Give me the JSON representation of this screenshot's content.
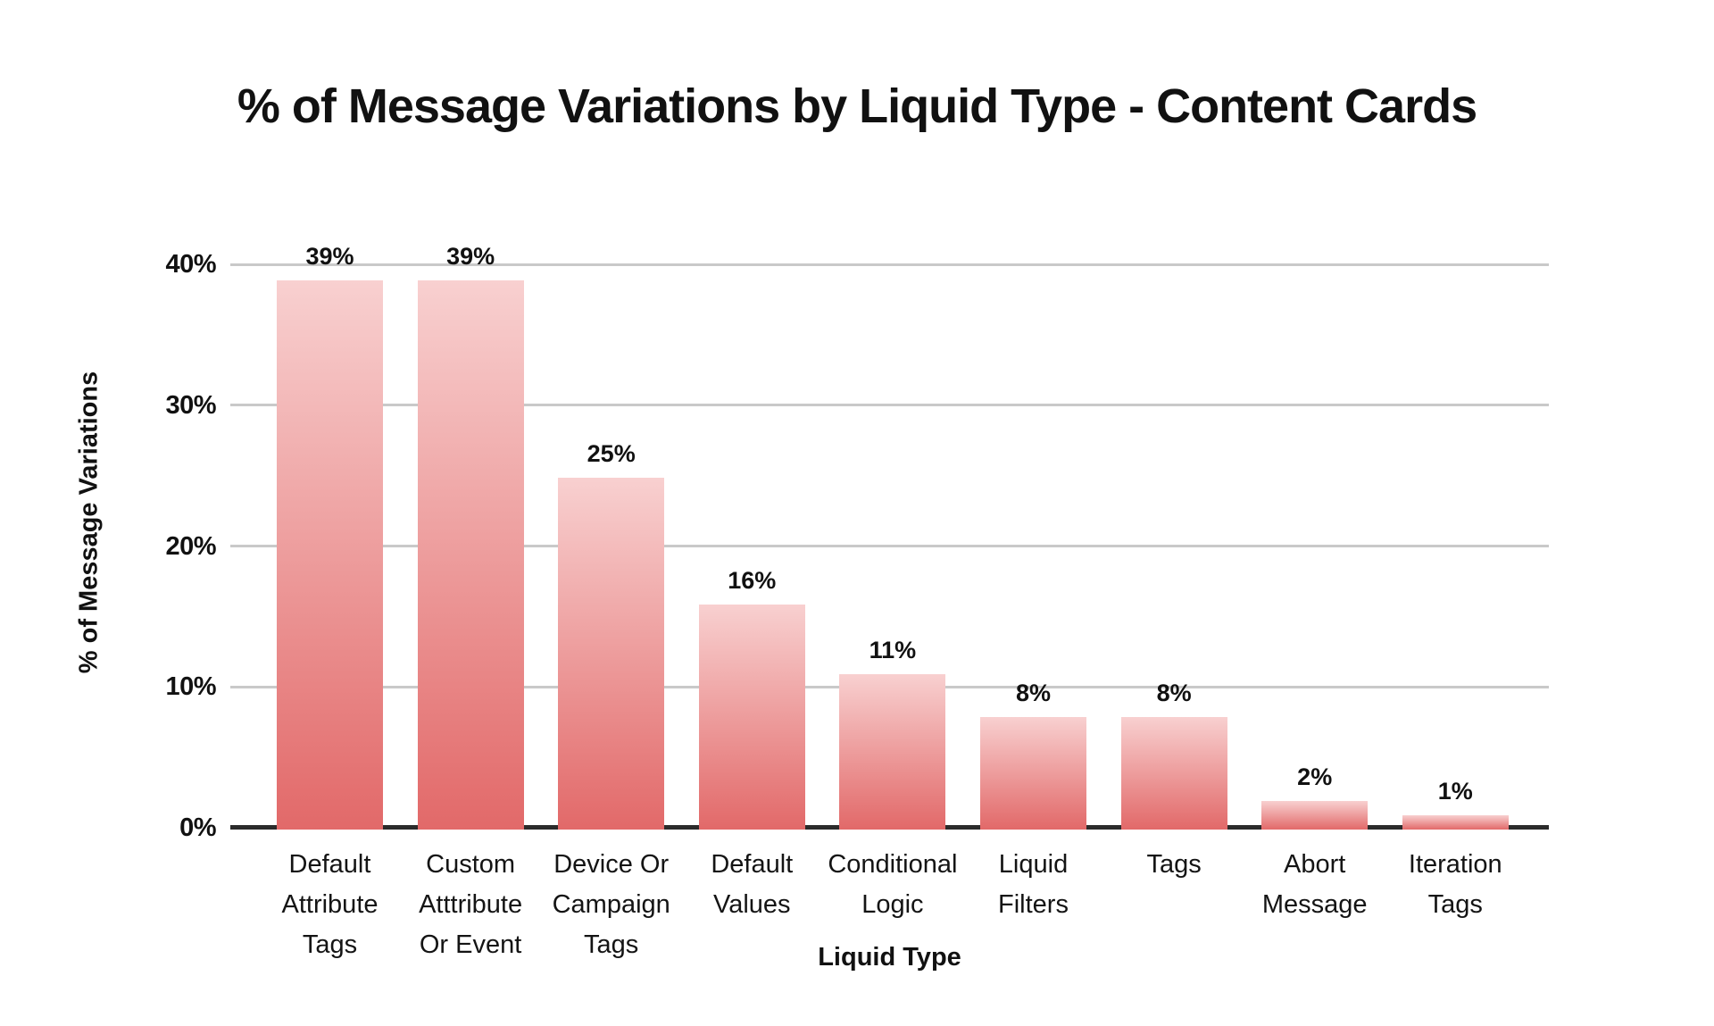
{
  "title": "% of Message Variations by Liquid Type - Content Cards",
  "chart_data": {
    "type": "bar",
    "title": "% of Message Variations by Liquid Type - Content Cards",
    "xlabel": "Liquid Type",
    "ylabel": "% of Message Variations",
    "categories": [
      "Default Attribute Tags",
      "Custom Atttribute Or Event",
      "Device Or Campaign Tags",
      "Default Values",
      "Conditional Logic",
      "Liquid Filters",
      "Tags",
      "Abort Message",
      "Iteration Tags"
    ],
    "category_lines": [
      [
        "Default",
        "Attribute",
        "Tags"
      ],
      [
        "Custom",
        "Atttribute",
        "Or Event"
      ],
      [
        "Device Or",
        "Campaign",
        "Tags"
      ],
      [
        "Default",
        "Values"
      ],
      [
        "Conditional",
        "Logic"
      ],
      [
        "Liquid",
        "Filters"
      ],
      [
        "Tags"
      ],
      [
        "Abort",
        "Message"
      ],
      [
        "Iteration",
        "Tags"
      ]
    ],
    "values": [
      39,
      39,
      25,
      16,
      11,
      8,
      8,
      2,
      1
    ],
    "value_labels": [
      "39%",
      "39%",
      "25%",
      "16%",
      "11%",
      "8%",
      "8%",
      "2%",
      "1%"
    ],
    "y_ticks": [
      "0%",
      "10%",
      "20%",
      "30%",
      "40%"
    ],
    "y_tick_values": [
      0,
      10,
      20,
      30,
      40
    ],
    "ylim": [
      0,
      40
    ],
    "grid": true,
    "legend": false
  },
  "colors": {
    "background": "#ffffff",
    "bar_gradient_top": "#f8d0d0",
    "bar_gradient_bottom": "#e26969",
    "gridline": "#c9c9c9",
    "axis_line": "#2b2b2b",
    "text": "#111111"
  }
}
